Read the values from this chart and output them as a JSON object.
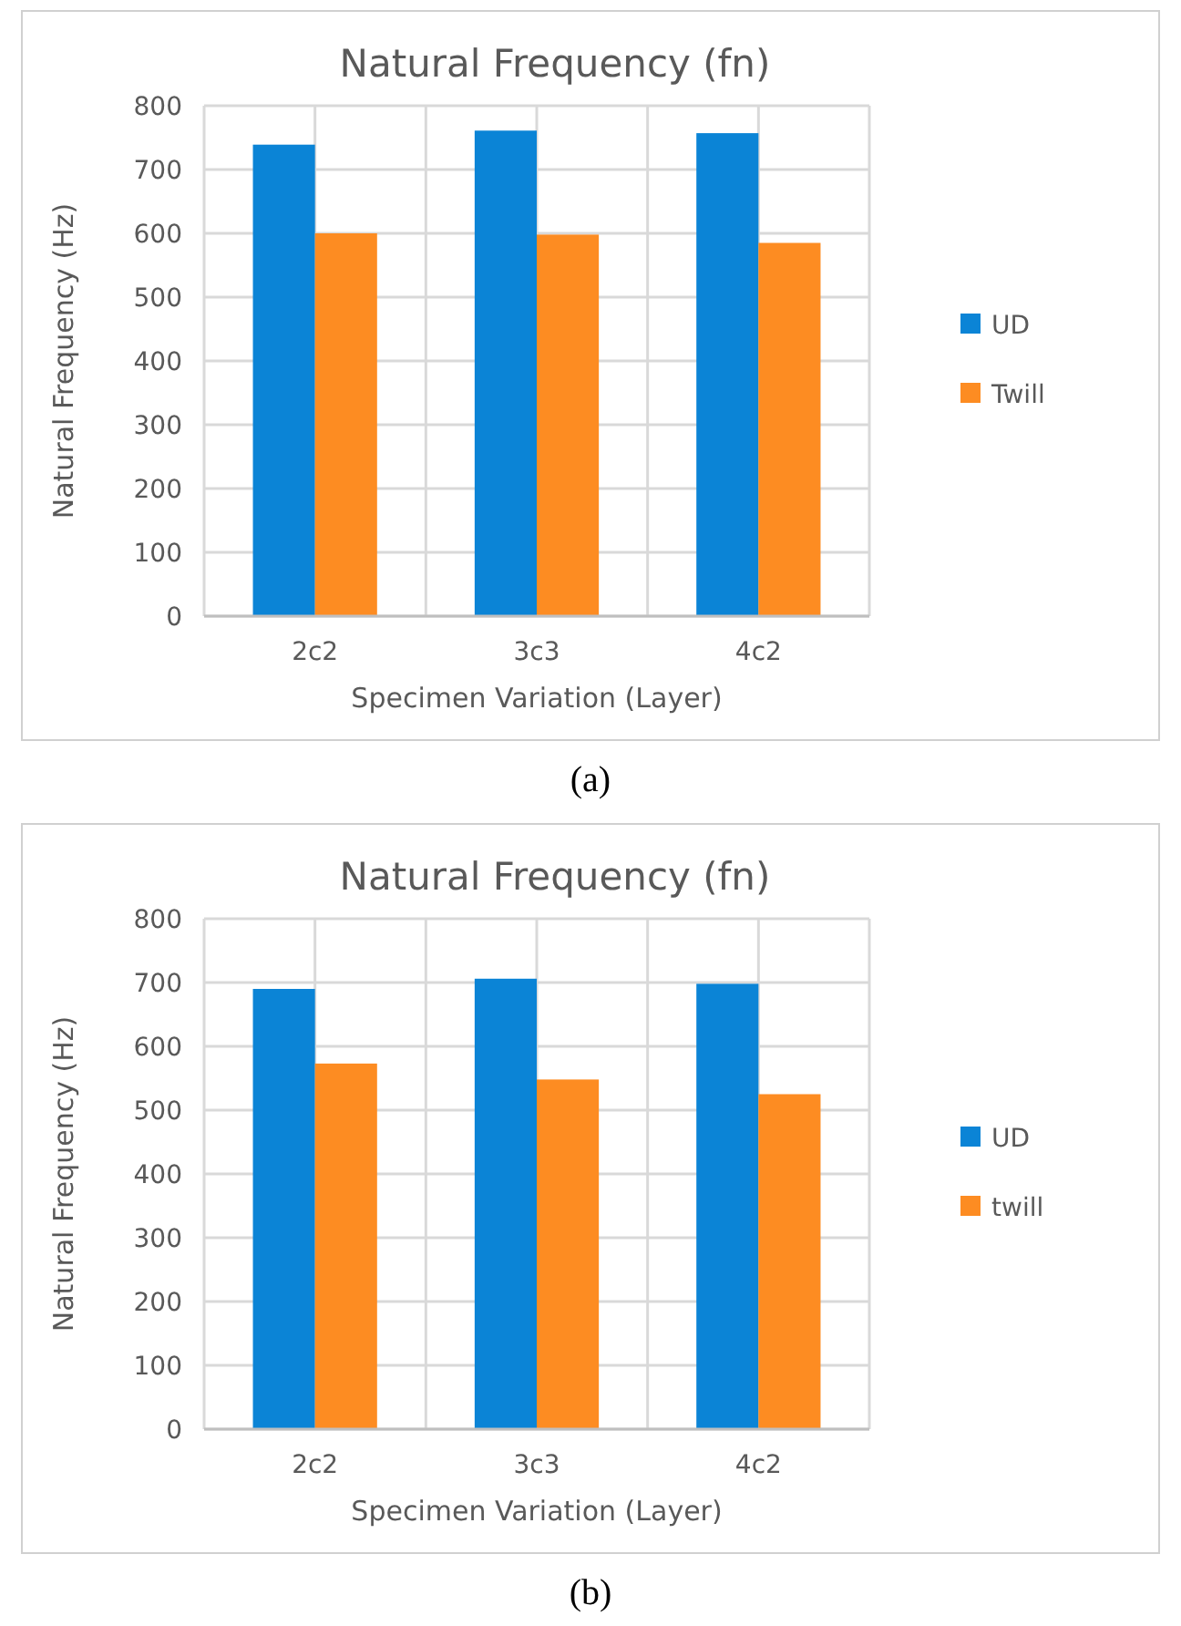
{
  "chart_data": [
    {
      "type": "bar",
      "title": "Natural Frequency  (fn)",
      "xlabel": "Specimen Variation (Layer)",
      "ylabel": "Natural Frequency (Hz)",
      "categories": [
        "2c2",
        "3c3",
        "4c2"
      ],
      "series": [
        {
          "name": "UD",
          "color": "#0b84d6",
          "values": [
            739,
            761,
            757
          ]
        },
        {
          "name": "Twill",
          "color": "#fd8c22",
          "values": [
            600,
            598,
            585
          ]
        }
      ],
      "ylim": [
        0,
        800
      ],
      "yticks": [
        0,
        100,
        200,
        300,
        400,
        500,
        600,
        700,
        800
      ],
      "grid": true,
      "legend": "right",
      "annotations": [
        "(a)"
      ]
    },
    {
      "type": "bar",
      "title": "Natural Frequency  (fn)",
      "xlabel": "Specimen Variation (Layer)",
      "ylabel": "Natural Frequency (Hz)",
      "categories": [
        "2c2",
        "3c3",
        "4c2"
      ],
      "series": [
        {
          "name": "UD",
          "color": "#0b84d6",
          "values": [
            690,
            706,
            698
          ]
        },
        {
          "name": "twill",
          "color": "#fd8c22",
          "values": [
            573,
            548,
            525
          ]
        }
      ],
      "ylim": [
        0,
        800
      ],
      "yticks": [
        0,
        100,
        200,
        300,
        400,
        500,
        600,
        700,
        800
      ],
      "grid": true,
      "legend": "right",
      "annotations": [
        "(b)"
      ]
    }
  ]
}
